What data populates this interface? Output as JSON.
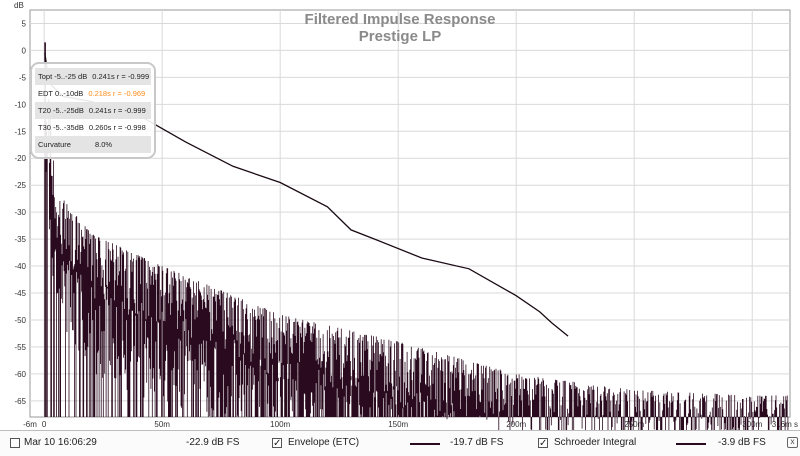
{
  "chart_data": {
    "type": "line",
    "title": "Filtered Impulse Response",
    "subtitle": "Prestige LP",
    "ylabel": "dB",
    "xlabel": "",
    "x_unit": "s",
    "xlim": [
      -0.006,
      0.316
    ],
    "ylim": [
      -68,
      7.5
    ],
    "grid": true,
    "x_ticks": [
      {
        "v": -0.006,
        "label": "-6m"
      },
      {
        "v": 0,
        "label": "0"
      },
      {
        "v": 0.05,
        "label": "50m"
      },
      {
        "v": 0.1,
        "label": "100m"
      },
      {
        "v": 0.15,
        "label": "150m"
      },
      {
        "v": 0.2,
        "label": "200m"
      },
      {
        "v": 0.25,
        "label": "250m"
      },
      {
        "v": 0.3,
        "label": "300m"
      },
      {
        "v": 0.316,
        "label": "316m s"
      }
    ],
    "y_ticks": [
      {
        "v": 5,
        "label": "5"
      },
      {
        "v": 0,
        "label": "0"
      },
      {
        "v": -5,
        "label": "-5"
      },
      {
        "v": -10,
        "label": "-10"
      },
      {
        "v": -15,
        "label": "-15"
      },
      {
        "v": -20,
        "label": "-20"
      },
      {
        "v": -25,
        "label": "-25"
      },
      {
        "v": -30,
        "label": "-30"
      },
      {
        "v": -35,
        "label": "-35"
      },
      {
        "v": -40,
        "label": "-40"
      },
      {
        "v": -45,
        "label": "-45"
      },
      {
        "v": -50,
        "label": "-50"
      },
      {
        "v": -55,
        "label": "-55"
      },
      {
        "v": -60,
        "label": "-60"
      },
      {
        "v": -65,
        "label": "-65"
      }
    ],
    "series": [
      {
        "name": "Schroeder Integral",
        "color": "#1a0a14",
        "kind": "curve",
        "x": [
          0.0003,
          0.002,
          0.008,
          0.02,
          0.04,
          0.06,
          0.08,
          0.1,
          0.12,
          0.13,
          0.14,
          0.16,
          0.18,
          0.2,
          0.21,
          0.215,
          0.222
        ],
        "y": [
          -0.5,
          -6,
          -8.5,
          -9.5,
          -12,
          -17,
          -21.5,
          -24.5,
          -29,
          -33.3,
          -35,
          -38.5,
          -40.5,
          -45.5,
          -48.5,
          -50.5,
          -53
        ]
      },
      {
        "name": "Envelope (ETC)",
        "color": "#2a0a1f",
        "kind": "envelope",
        "envelope_floor_db": -68,
        "peak": {
          "x": 0.0004,
          "y": 1.5
        },
        "top_x": [
          0,
          0.005,
          0.02,
          0.05,
          0.1,
          0.15,
          0.2,
          0.25,
          0.3,
          0.316
        ],
        "top_y": [
          1.5,
          -26,
          -34,
          -40,
          -49,
          -54,
          -60,
          -63,
          -64,
          -64
        ]
      }
    ]
  },
  "stats": [
    {
      "label": "Topt -5..-25 dB",
      "value": "0.241s  r = -0.999"
    },
    {
      "label": "EDT  0..-10dB",
      "value": "0.218s  r = -0.969"
    },
    {
      "label": "T20 -5..-25dB",
      "value": "0.241s  r = -0.999"
    },
    {
      "label": "T30 -5..-35dB",
      "value": "0.260s  r = -0.998"
    },
    {
      "label": "Curvature",
      "value": "8.0%"
    }
  ],
  "legend": {
    "timestamp": "Mar 10 16:06:29",
    "timestamp_checked": false,
    "level_main": "-22.9 dB FS",
    "envelope_label": "Envelope (ETC)",
    "envelope_checked": true,
    "envelope_level": "-19.7 dB FS",
    "schroeder_label": "Schroeder Integral",
    "schroeder_checked": true,
    "schroeder_level": "-3.9 dB FS",
    "check_glyph": "✓",
    "close_glyph": "x"
  },
  "colors": {
    "grid": "#d9d9d9",
    "plot_bg": "#ffffff",
    "trace": "#2a0a1f",
    "highlight_row": "#ff8c1a"
  }
}
